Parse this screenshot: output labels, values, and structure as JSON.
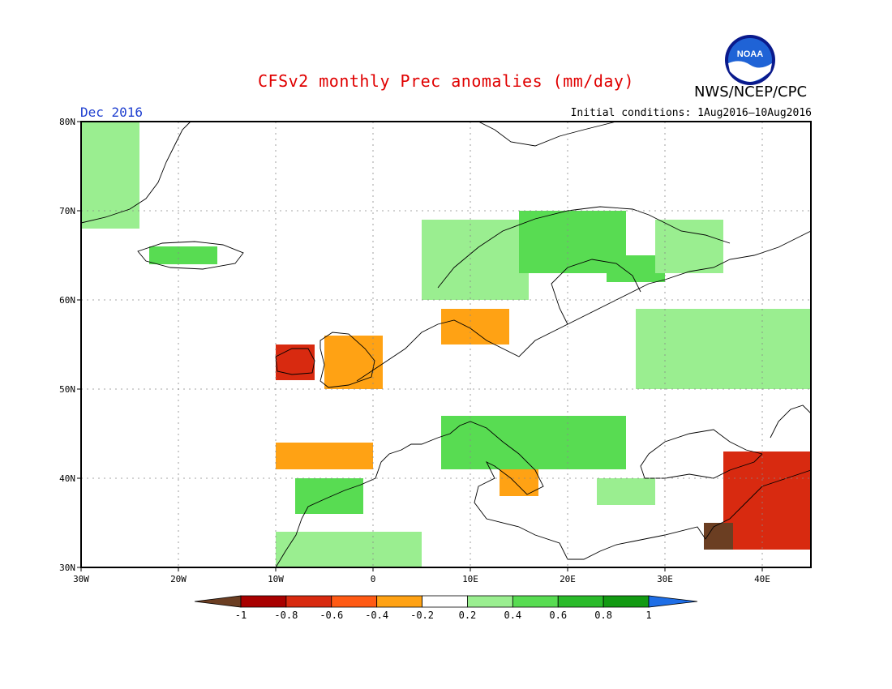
{
  "title": "CFSv2 monthly Prec anomalies (mm/day)",
  "organization": "NWS/NCEP/CPC",
  "logo_text": "NOAA",
  "month_label": "Dec 2016",
  "initial_conditions": "Initial conditions: 1Aug2016–10Aug2016",
  "colors": {
    "title": "#e00000",
    "month": "#2040d0",
    "dry_extreme": "#6b3e22",
    "wet_extreme": "#1e6ee6"
  },
  "chart_data": {
    "type": "heatmap",
    "projection": "lat-lon",
    "xlim": [
      -30,
      45
    ],
    "ylim": [
      30,
      80
    ],
    "lon_ticks": [
      {
        "value": -30,
        "label": "30W"
      },
      {
        "value": -20,
        "label": "20W"
      },
      {
        "value": -10,
        "label": "10W"
      },
      {
        "value": 0,
        "label": "0"
      },
      {
        "value": 10,
        "label": "10E"
      },
      {
        "value": 20,
        "label": "20E"
      },
      {
        "value": 30,
        "label": "30E"
      },
      {
        "value": 40,
        "label": "40E"
      }
    ],
    "lat_ticks": [
      {
        "value": 30,
        "label": "30N"
      },
      {
        "value": 40,
        "label": "40N"
      },
      {
        "value": 50,
        "label": "50N"
      },
      {
        "value": 60,
        "label": "60N"
      },
      {
        "value": 70,
        "label": "70N"
      },
      {
        "value": 80,
        "label": "80N"
      }
    ],
    "grid": true,
    "colorbar": {
      "ticks": [
        "-1",
        "-0.8",
        "-0.6",
        "-0.4",
        "-0.2",
        "0.2",
        "0.4",
        "0.6",
        "0.8",
        "1"
      ],
      "colors": [
        "#a80000",
        "#d82a10",
        "#ff5a14",
        "#ffa214",
        "#ffffff",
        "#9aee90",
        "#58dc52",
        "#2aba2a",
        "#129a12"
      ],
      "under_color": "#6b3e22",
      "over_color": "#1e6ee6"
    },
    "regions": [
      {
        "name": "Greenland east coast",
        "lon": [
          -30,
          -24
        ],
        "lat": [
          68,
          80
        ],
        "class": 0.3
      },
      {
        "name": "Iceland",
        "lon": [
          -23,
          -16
        ],
        "lat": [
          64,
          66
        ],
        "class": 0.4
      },
      {
        "name": "Norway coast",
        "lon": [
          5,
          16
        ],
        "lat": [
          60,
          69
        ],
        "class": 0.3
      },
      {
        "name": "Northern Scandinavia",
        "lon": [
          15,
          26
        ],
        "lat": [
          63,
          70
        ],
        "class": 0.5
      },
      {
        "name": "Central Finland",
        "lon": [
          24,
          30
        ],
        "lat": [
          62,
          65
        ],
        "class": 0.5
      },
      {
        "name": "Finland / White Sea",
        "lon": [
          29,
          36
        ],
        "lat": [
          63,
          69
        ],
        "class": 0.3
      },
      {
        "name": "Western Russia",
        "lon": [
          27,
          45
        ],
        "lat": [
          50,
          59
        ],
        "class": 0.3
      },
      {
        "name": "Ireland",
        "lon": [
          -10,
          -6
        ],
        "lat": [
          51,
          55
        ],
        "class": -0.7
      },
      {
        "name": "Great Britain",
        "lon": [
          -5,
          1
        ],
        "lat": [
          50,
          56
        ],
        "class": -0.3
      },
      {
        "name": "Denmark / south Norway",
        "lon": [
          7,
          14
        ],
        "lat": [
          55,
          59
        ],
        "class": -0.3
      },
      {
        "name": "Northern Italy / Balkans",
        "lon": [
          7,
          26
        ],
        "lat": [
          41,
          47
        ],
        "class": 0.4
      },
      {
        "name": "Northern Iberia",
        "lon": [
          -10,
          0
        ],
        "lat": [
          41,
          44
        ],
        "class": -0.3
      },
      {
        "name": "Southern Iberia",
        "lon": [
          -8,
          -1
        ],
        "lat": [
          36,
          40
        ],
        "class": 0.5
      },
      {
        "name": "North Africa",
        "lon": [
          -10,
          5
        ],
        "lat": [
          30,
          34
        ],
        "class": 0.3
      },
      {
        "name": "Southern Italy",
        "lon": [
          13,
          17
        ],
        "lat": [
          38,
          41
        ],
        "class": -0.3
      },
      {
        "name": "Aegean / Turkey west",
        "lon": [
          23,
          29
        ],
        "lat": [
          37,
          40
        ],
        "class": 0.3
      },
      {
        "name": "Eastern Turkey / Middle East",
        "lon": [
          36,
          45
        ],
        "lat": [
          32,
          43
        ],
        "class": -0.7
      },
      {
        "name": "Levant",
        "lon": [
          34,
          37
        ],
        "lat": [
          32,
          35
        ],
        "class": -1.1
      }
    ]
  }
}
